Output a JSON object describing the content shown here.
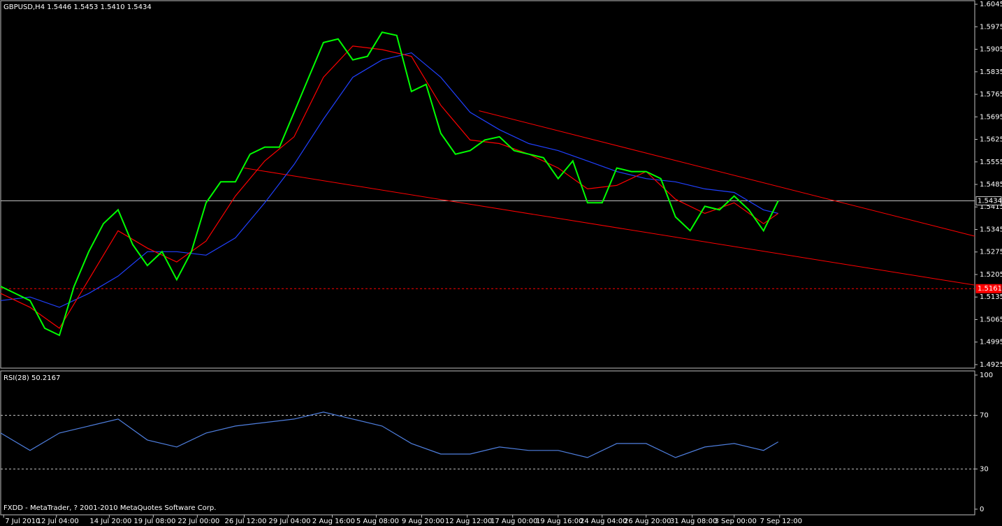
{
  "chart_data": [
    {
      "type": "line",
      "title": "GBPUSD,H4  1.5446 1.5453 1.5410 1.5434",
      "xlim": [
        0,
        332
      ],
      "xticks": [
        {
          "value": 1,
          "label": "7 Jul 2010"
        },
        {
          "value": 19,
          "label": "12 Jul 04:00"
        },
        {
          "value": 37,
          "label": "14 Jul 20:00"
        },
        {
          "value": 52,
          "label": "19 Jul 08:00"
        },
        {
          "value": 67,
          "label": "22 Jul 00:00"
        },
        {
          "value": 83,
          "label": "26 Jul 12:00"
        },
        {
          "value": 98,
          "label": "29 Jul 04:00"
        },
        {
          "value": 113,
          "label": "2 Aug 16:00"
        },
        {
          "value": 128,
          "label": "5 Aug 08:00"
        },
        {
          "value": 143.5,
          "label": "9 Aug 20:00"
        },
        {
          "value": 159,
          "label": "12 Aug 12:00"
        },
        {
          "value": 174.5,
          "label": "17 Aug 00:00"
        },
        {
          "value": 190,
          "label": "19 Aug 16:00"
        },
        {
          "value": 205,
          "label": "24 Aug 04:00"
        },
        {
          "value": 220,
          "label": "26 Aug 20:00"
        },
        {
          "value": 235.7,
          "label": "31 Aug 08:00"
        },
        {
          "value": 250,
          "label": "3 Sep 00:00"
        },
        {
          "value": 265.5,
          "label": "7 Sep 12:00"
        }
      ],
      "ylim": [
        1.4914,
        1.6056
      ],
      "yticks": [
        1.6045,
        1.5975,
        1.5905,
        1.5835,
        1.5765,
        1.5695,
        1.5625,
        1.5555,
        1.5485,
        1.5415,
        1.5345,
        1.5275,
        1.5205,
        1.5135,
        1.5065,
        1.4995,
        1.4925
      ],
      "series": [
        {
          "color": "#00ff00",
          "x": [
            0,
            5,
            10,
            15,
            20,
            25,
            30,
            35,
            40,
            45,
            50,
            55,
            60,
            65,
            70,
            75,
            80,
            85,
            90,
            95,
            100,
            105,
            110,
            115,
            120,
            125,
            130,
            135,
            140,
            145,
            150,
            155,
            160,
            165,
            170,
            175,
            180,
            185,
            190,
            195,
            200,
            205,
            210,
            215,
            220,
            225,
            230,
            235,
            240,
            245,
            250,
            255,
            260,
            265
          ],
          "values": [
            1.5168,
            1.5146,
            1.5124,
            1.5038,
            1.5016,
            1.5168,
            1.5276,
            1.5363,
            1.5406,
            1.5298,
            1.5233,
            1.5276,
            1.5189,
            1.5276,
            1.5428,
            1.5493,
            1.5493,
            1.5579,
            1.5601,
            1.5601,
            1.5709,
            1.5818,
            1.5926,
            1.5937,
            1.5872,
            1.5883,
            1.5958,
            1.5948,
            1.5774,
            1.5796,
            1.5644,
            1.5579,
            1.559,
            1.5623,
            1.5633,
            1.559,
            1.5579,
            1.5568,
            1.5503,
            1.5558,
            1.5428,
            1.5428,
            1.5536,
            1.5525,
            1.5525,
            1.5503,
            1.5384,
            1.5341,
            1.5417,
            1.5406,
            1.5449,
            1.5406,
            1.5341,
            1.5434
          ]
        },
        {
          "color": "#ff0000",
          "x": [
            0,
            10,
            20,
            30,
            40,
            50,
            60,
            70,
            80,
            90,
            100,
            110,
            120,
            130,
            140,
            150,
            160,
            170,
            180,
            190,
            200,
            210,
            220,
            230,
            240,
            250,
            260,
            265
          ],
          "values": [
            1.5146,
            1.5103,
            1.5038,
            1.5189,
            1.5341,
            1.5287,
            1.5244,
            1.5309,
            1.5449,
            1.5558,
            1.5633,
            1.5818,
            1.5915,
            1.5904,
            1.5883,
            1.5731,
            1.5623,
            1.5612,
            1.5579,
            1.5536,
            1.5471,
            1.5482,
            1.5525,
            1.5439,
            1.5395,
            1.5428,
            1.5363,
            1.5395
          ]
        },
        {
          "color": "#2040ff",
          "x": [
            0,
            10,
            20,
            30,
            40,
            50,
            60,
            70,
            80,
            90,
            100,
            110,
            120,
            130,
            140,
            150,
            160,
            170,
            180,
            190,
            200,
            210,
            220,
            230,
            240,
            250,
            260,
            265
          ],
          "values": [
            1.5124,
            1.5135,
            1.5103,
            1.5146,
            1.52,
            1.5276,
            1.5276,
            1.5265,
            1.5319,
            1.5428,
            1.5547,
            1.5688,
            1.5818,
            1.5872,
            1.5894,
            1.5818,
            1.5709,
            1.5655,
            1.5612,
            1.559,
            1.5558,
            1.5525,
            1.5503,
            1.5493,
            1.5471,
            1.546,
            1.5406,
            1.5395
          ]
        }
      ],
      "trend_lines": [
        {
          "color": "#ff0000",
          "x": [
            163,
            332
          ],
          "values": [
            1.5714,
            1.5324
          ]
        },
        {
          "color": "#ff0000",
          "x": [
            83,
            332
          ],
          "values": [
            1.5536,
            1.5172
          ]
        }
      ],
      "hlines": [
        {
          "value": 1.5434,
          "color": "#c0c0c0",
          "style": "solid"
        },
        {
          "value": 1.5161,
          "color": "#ff0000",
          "style": "dashed"
        }
      ]
    },
    {
      "type": "line",
      "title": "RSI(28) 50.2167",
      "ylim": [
        -4.2,
        103.1
      ],
      "yticks": [
        100,
        70,
        30,
        0
      ],
      "series": [
        {
          "color": "#4f7fdf",
          "x": [
            0,
            10,
            20,
            30,
            40,
            50,
            60,
            70,
            80,
            90,
            100,
            110,
            120,
            130,
            140,
            150,
            160,
            170,
            180,
            190,
            200,
            210,
            220,
            230,
            240,
            250,
            260,
            265
          ],
          "values": [
            56.8,
            43.8,
            56.8,
            62,
            67.2,
            51.6,
            46.4,
            56.8,
            62,
            64.6,
            67.2,
            72.4,
            67.2,
            62,
            49,
            41.1,
            41.1,
            46.4,
            43.8,
            43.8,
            38.5,
            49,
            49,
            38.5,
            46.4,
            49,
            43.8,
            50.2
          ]
        }
      ]
    }
  ],
  "footer": "FXDD - MetaTrader, ? 2001-2010 MetaQuotes Software Corp."
}
